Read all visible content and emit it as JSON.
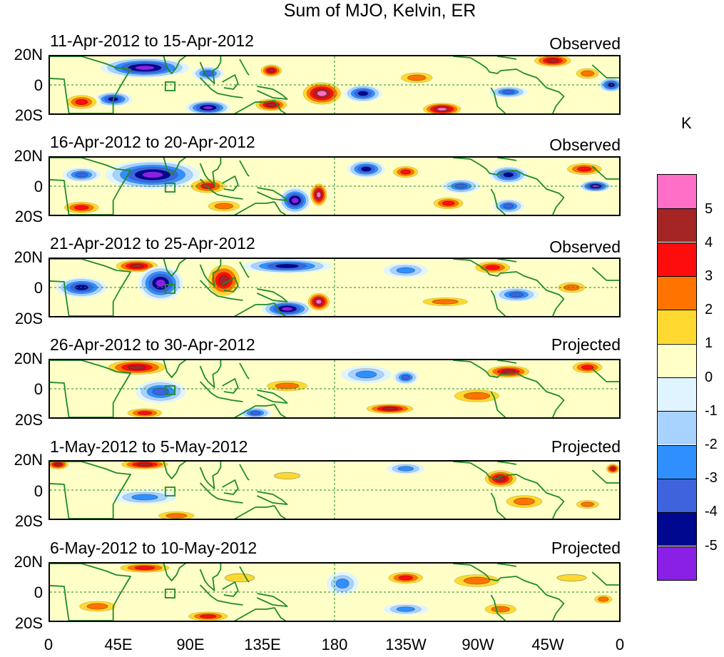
{
  "chart_data": {
    "type": "heatmap",
    "title": "Sum of MJO, Kelvin, ER",
    "xlabel": "",
    "ylabel": "",
    "x_ticks": [
      "0",
      "45E",
      "90E",
      "135E",
      "180",
      "135W",
      "90W",
      "45W",
      "0"
    ],
    "y_ticks": [
      "20N",
      "0",
      "20S"
    ],
    "xlim": [
      0,
      360
    ],
    "ylim": [
      -20,
      20
    ],
    "colorbar": {
      "unit": "K",
      "labels": [
        "5",
        "4",
        "3",
        "2",
        "1",
        "0",
        "-1",
        "-2",
        "-3",
        "-4",
        "-5"
      ],
      "colors": [
        "#ff6ec7",
        "#a52525",
        "#ff0d0d",
        "#ff7300",
        "#ffd830",
        "#ffffc8",
        "#dff4ff",
        "#a8d2ff",
        "#2f8fff",
        "#3f62dd",
        "#000890",
        "#8a20e6"
      ]
    },
    "panels": [
      {
        "period": "11-Apr-2012 to 15-Apr-2012",
        "status": "Observed",
        "blobs": [
          {
            "lon": 60,
            "lat": 12,
            "rx": 28,
            "ry": 7,
            "val": -5
          },
          {
            "lon": 40,
            "lat": -10,
            "rx": 12,
            "ry": 5,
            "val": -4
          },
          {
            "lon": 20,
            "lat": -12,
            "rx": 12,
            "ry": 6,
            "val": 3
          },
          {
            "lon": 100,
            "lat": 8,
            "rx": 10,
            "ry": 5,
            "val": -3
          },
          {
            "lon": 100,
            "lat": -16,
            "rx": 14,
            "ry": 5,
            "val": -5
          },
          {
            "lon": 140,
            "lat": 10,
            "rx": 8,
            "ry": 5,
            "val": 4
          },
          {
            "lon": 140,
            "lat": -14,
            "rx": 12,
            "ry": 5,
            "val": 4
          },
          {
            "lon": 172,
            "lat": -6,
            "rx": 14,
            "ry": 9,
            "val": 5
          },
          {
            "lon": 198,
            "lat": -6,
            "rx": 12,
            "ry": 6,
            "val": -4
          },
          {
            "lon": 232,
            "lat": 5,
            "rx": 14,
            "ry": 5,
            "val": 2
          },
          {
            "lon": 248,
            "lat": -17,
            "rx": 14,
            "ry": 5,
            "val": 5
          },
          {
            "lon": 290,
            "lat": -5,
            "rx": 12,
            "ry": 4,
            "val": -3
          },
          {
            "lon": 318,
            "lat": 17,
            "rx": 14,
            "ry": 5,
            "val": 4
          },
          {
            "lon": 340,
            "lat": 8,
            "rx": 10,
            "ry": 5,
            "val": 2
          },
          {
            "lon": 355,
            "lat": 0,
            "rx": 8,
            "ry": 5,
            "val": -4
          }
        ]
      },
      {
        "period": "16-Apr-2012 to 20-Apr-2012",
        "status": "Observed",
        "blobs": [
          {
            "lon": 20,
            "lat": 8,
            "rx": 12,
            "ry": 5,
            "val": -3
          },
          {
            "lon": 65,
            "lat": 8,
            "rx": 30,
            "ry": 10,
            "val": -5
          },
          {
            "lon": 20,
            "lat": -15,
            "rx": 14,
            "ry": 5,
            "val": 3
          },
          {
            "lon": 100,
            "lat": 0,
            "rx": 14,
            "ry": 6,
            "val": 3
          },
          {
            "lon": 110,
            "lat": -14,
            "rx": 14,
            "ry": 5,
            "val": 2
          },
          {
            "lon": 155,
            "lat": -10,
            "rx": 10,
            "ry": 9,
            "val": -5
          },
          {
            "lon": 170,
            "lat": -6,
            "rx": 6,
            "ry": 9,
            "val": 5
          },
          {
            "lon": 200,
            "lat": 12,
            "rx": 12,
            "ry": 6,
            "val": -4
          },
          {
            "lon": 225,
            "lat": 10,
            "rx": 10,
            "ry": 5,
            "val": 3
          },
          {
            "lon": 260,
            "lat": 0,
            "rx": 12,
            "ry": 5,
            "val": -3
          },
          {
            "lon": 252,
            "lat": -12,
            "rx": 12,
            "ry": 5,
            "val": 3
          },
          {
            "lon": 290,
            "lat": 8,
            "rx": 12,
            "ry": 6,
            "val": -4
          },
          {
            "lon": 290,
            "lat": -14,
            "rx": 10,
            "ry": 5,
            "val": -3
          },
          {
            "lon": 338,
            "lat": 12,
            "rx": 14,
            "ry": 5,
            "val": 3
          },
          {
            "lon": 345,
            "lat": 0,
            "rx": 10,
            "ry": 4,
            "val": -5
          }
        ]
      },
      {
        "period": "21-Apr-2012 to 25-Apr-2012",
        "status": "Observed",
        "blobs": [
          {
            "lon": 20,
            "lat": 0,
            "rx": 16,
            "ry": 7,
            "val": -4
          },
          {
            "lon": 55,
            "lat": 15,
            "rx": 16,
            "ry": 5,
            "val": 4
          },
          {
            "lon": 70,
            "lat": 3,
            "rx": 14,
            "ry": 12,
            "val": -5
          },
          {
            "lon": 110,
            "lat": 5,
            "rx": 12,
            "ry": 13,
            "val": 4
          },
          {
            "lon": 150,
            "lat": 15,
            "rx": 28,
            "ry": 5,
            "val": -4
          },
          {
            "lon": 150,
            "lat": -15,
            "rx": 16,
            "ry": 6,
            "val": -5
          },
          {
            "lon": 170,
            "lat": -10,
            "rx": 8,
            "ry": 7,
            "val": 5
          },
          {
            "lon": 225,
            "lat": 12,
            "rx": 14,
            "ry": 5,
            "val": -2
          },
          {
            "lon": 250,
            "lat": -10,
            "rx": 20,
            "ry": 4,
            "val": 2
          },
          {
            "lon": 280,
            "lat": 14,
            "rx": 14,
            "ry": 5,
            "val": 3
          },
          {
            "lon": 295,
            "lat": -5,
            "rx": 14,
            "ry": 5,
            "val": -3
          },
          {
            "lon": 330,
            "lat": 0,
            "rx": 12,
            "ry": 5,
            "val": 2
          }
        ]
      },
      {
        "period": "26-Apr-2012 to 30-Apr-2012",
        "status": "Projected",
        "blobs": [
          {
            "lon": 55,
            "lat": 15,
            "rx": 22,
            "ry": 6,
            "val": 4
          },
          {
            "lon": 70,
            "lat": -2,
            "rx": 16,
            "ry": 8,
            "val": -3
          },
          {
            "lon": 60,
            "lat": -17,
            "rx": 14,
            "ry": 4,
            "val": 3
          },
          {
            "lon": 130,
            "lat": -17,
            "rx": 10,
            "ry": 4,
            "val": -3
          },
          {
            "lon": 150,
            "lat": 2,
            "rx": 18,
            "ry": 5,
            "val": 2
          },
          {
            "lon": 200,
            "lat": 10,
            "rx": 16,
            "ry": 6,
            "val": -2
          },
          {
            "lon": 225,
            "lat": 8,
            "rx": 8,
            "ry": 5,
            "val": -3
          },
          {
            "lon": 215,
            "lat": -14,
            "rx": 18,
            "ry": 4,
            "val": 4
          },
          {
            "lon": 290,
            "lat": 12,
            "rx": 16,
            "ry": 5,
            "val": 4
          },
          {
            "lon": 270,
            "lat": -5,
            "rx": 20,
            "ry": 6,
            "val": 2
          },
          {
            "lon": 340,
            "lat": 15,
            "rx": 12,
            "ry": 5,
            "val": 3
          }
        ]
      },
      {
        "period": "1-May-2012 to 5-May-2012",
        "status": "Projected",
        "blobs": [
          {
            "lon": 5,
            "lat": 18,
            "rx": 8,
            "ry": 4,
            "val": 4
          },
          {
            "lon": 60,
            "lat": 18,
            "rx": 18,
            "ry": 4,
            "val": 4
          },
          {
            "lon": 60,
            "lat": -5,
            "rx": 20,
            "ry": 5,
            "val": -2
          },
          {
            "lon": 80,
            "lat": -18,
            "rx": 16,
            "ry": 4,
            "val": 2
          },
          {
            "lon": 150,
            "lat": 10,
            "rx": 14,
            "ry": 4,
            "val": 1
          },
          {
            "lon": 225,
            "lat": 15,
            "rx": 12,
            "ry": 4,
            "val": -2
          },
          {
            "lon": 285,
            "lat": 8,
            "rx": 12,
            "ry": 7,
            "val": 4
          },
          {
            "lon": 300,
            "lat": -8,
            "rx": 16,
            "ry": 6,
            "val": 2
          },
          {
            "lon": 340,
            "lat": -10,
            "rx": 10,
            "ry": 4,
            "val": 2
          },
          {
            "lon": 356,
            "lat": 15,
            "rx": 5,
            "ry": 4,
            "val": 4
          }
        ]
      },
      {
        "period": "6-May-2012 to 10-May-2012",
        "status": "Projected",
        "blobs": [
          {
            "lon": 60,
            "lat": 17,
            "rx": 20,
            "ry": 4,
            "val": 3
          },
          {
            "lon": 30,
            "lat": -10,
            "rx": 16,
            "ry": 5,
            "val": 2
          },
          {
            "lon": 100,
            "lat": -17,
            "rx": 16,
            "ry": 4,
            "val": 3
          },
          {
            "lon": 120,
            "lat": 10,
            "rx": 16,
            "ry": 5,
            "val": 1
          },
          {
            "lon": 185,
            "lat": 6,
            "rx": 10,
            "ry": 8,
            "val": -2
          },
          {
            "lon": 225,
            "lat": 10,
            "rx": 14,
            "ry": 5,
            "val": 3
          },
          {
            "lon": 225,
            "lat": -12,
            "rx": 14,
            "ry": 4,
            "val": -2
          },
          {
            "lon": 270,
            "lat": 8,
            "rx": 20,
            "ry": 6,
            "val": 2
          },
          {
            "lon": 285,
            "lat": -12,
            "rx": 14,
            "ry": 5,
            "val": 2
          },
          {
            "lon": 330,
            "lat": 10,
            "rx": 16,
            "ry": 4,
            "val": 1
          },
          {
            "lon": 350,
            "lat": -5,
            "rx": 8,
            "ry": 4,
            "val": 2
          }
        ]
      }
    ]
  }
}
